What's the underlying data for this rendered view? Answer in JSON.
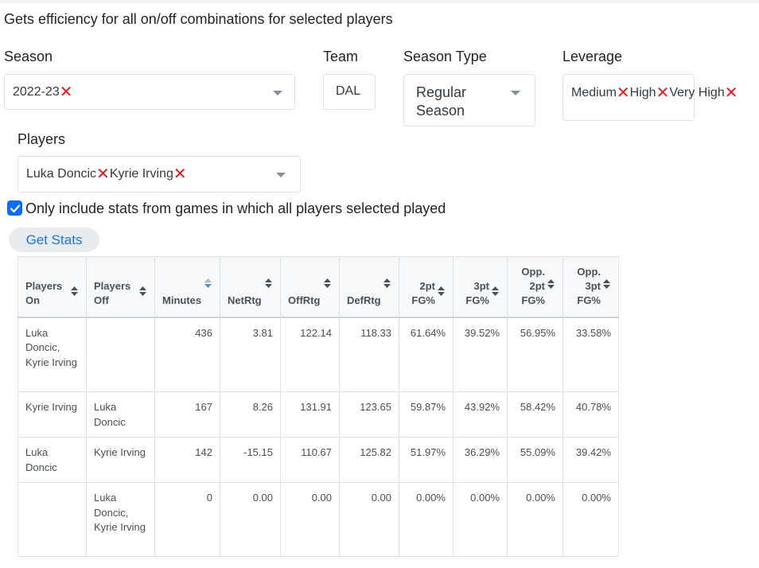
{
  "description": "Gets efficiency for all on/off combinations for selected players",
  "filters": {
    "season": {
      "label": "Season",
      "selected": [
        "2022-23"
      ]
    },
    "team": {
      "label": "Team",
      "value": "DAL"
    },
    "season_type": {
      "label": "Season Type",
      "value": "Regular Season"
    },
    "leverage": {
      "label": "Leverage",
      "selected": [
        "Medium",
        "High",
        "Very High"
      ]
    },
    "players": {
      "label": "Players",
      "selected": [
        "Luka Doncic",
        "Kyrie Irving"
      ]
    }
  },
  "only_all_played": {
    "label": "Only include stats from games in which all players selected played",
    "checked": true
  },
  "get_stats_label": "Get Stats",
  "colors": {
    "accent": "#1a73e8",
    "remove_x": "#e0191e",
    "checkbox": "#0d6efd",
    "sort_active": "#4a90e2"
  },
  "table": {
    "sorted_column": "Minutes",
    "headers": [
      {
        "label": "Players On"
      },
      {
        "label": "Players Off"
      },
      {
        "label": "Minutes"
      },
      {
        "label": "NetRtg"
      },
      {
        "label": "OffRtg"
      },
      {
        "label": "DefRtg"
      },
      {
        "label": "2pt FG%"
      },
      {
        "label": "3pt FG%"
      },
      {
        "label": "Opp. 2pt FG%"
      },
      {
        "label": "Opp. 3pt FG%"
      }
    ],
    "rows": [
      [
        "Luka Doncic, Kyrie Irving",
        "",
        "436",
        "3.81",
        "122.14",
        "118.33",
        "61.64%",
        "39.52%",
        "56.95%",
        "33.58%"
      ],
      [
        "Kyrie Irving",
        "Luka Doncic",
        "167",
        "8.26",
        "131.91",
        "123.65",
        "59.87%",
        "43.92%",
        "58.42%",
        "40.78%"
      ],
      [
        "Luka Doncic",
        "Kyrie Irving",
        "142",
        "-15.15",
        "110.67",
        "125.82",
        "51.97%",
        "36.29%",
        "55.09%",
        "39.42%"
      ],
      [
        "",
        "Luka Doncic, Kyrie Irving",
        "0",
        "0.00",
        "0.00",
        "0.00",
        "0.00%",
        "0.00%",
        "0.00%",
        "0.00%"
      ]
    ]
  }
}
